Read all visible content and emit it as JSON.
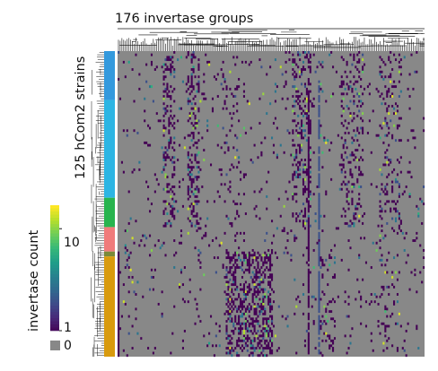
{
  "chart_data": {
    "type": "heatmap",
    "title": "176 invertase groups",
    "ylabel": "125 hCom2 strains",
    "n_cols": 176,
    "n_rows": 125,
    "colorbar": {
      "title": "invertase count",
      "scale": "log",
      "range": [
        1,
        17
      ],
      "ticks": [
        1,
        10
      ],
      "tick_labels": [
        "1",
        "10"
      ],
      "colormap": "viridis"
    },
    "na": {
      "label": "0",
      "color": "#888888"
    },
    "row_groups": [
      {
        "rows": [
          0,
          20
        ],
        "color": "#3399dd"
      },
      {
        "rows": [
          20,
          60
        ],
        "color": "#2cb5e3"
      },
      {
        "rows": [
          60,
          72
        ],
        "color": "#28b44e"
      },
      {
        "rows": [
          72,
          82
        ],
        "color": "#f07b7b"
      },
      {
        "rows": [
          82,
          84
        ],
        "color": "#7a8a3a"
      },
      {
        "rows": [
          84,
          125
        ],
        "color": "#d89a0e"
      }
    ]
  },
  "legend": {
    "title": "invertase count",
    "tick_high": "10",
    "tick_low": "1",
    "na_label": "0"
  }
}
